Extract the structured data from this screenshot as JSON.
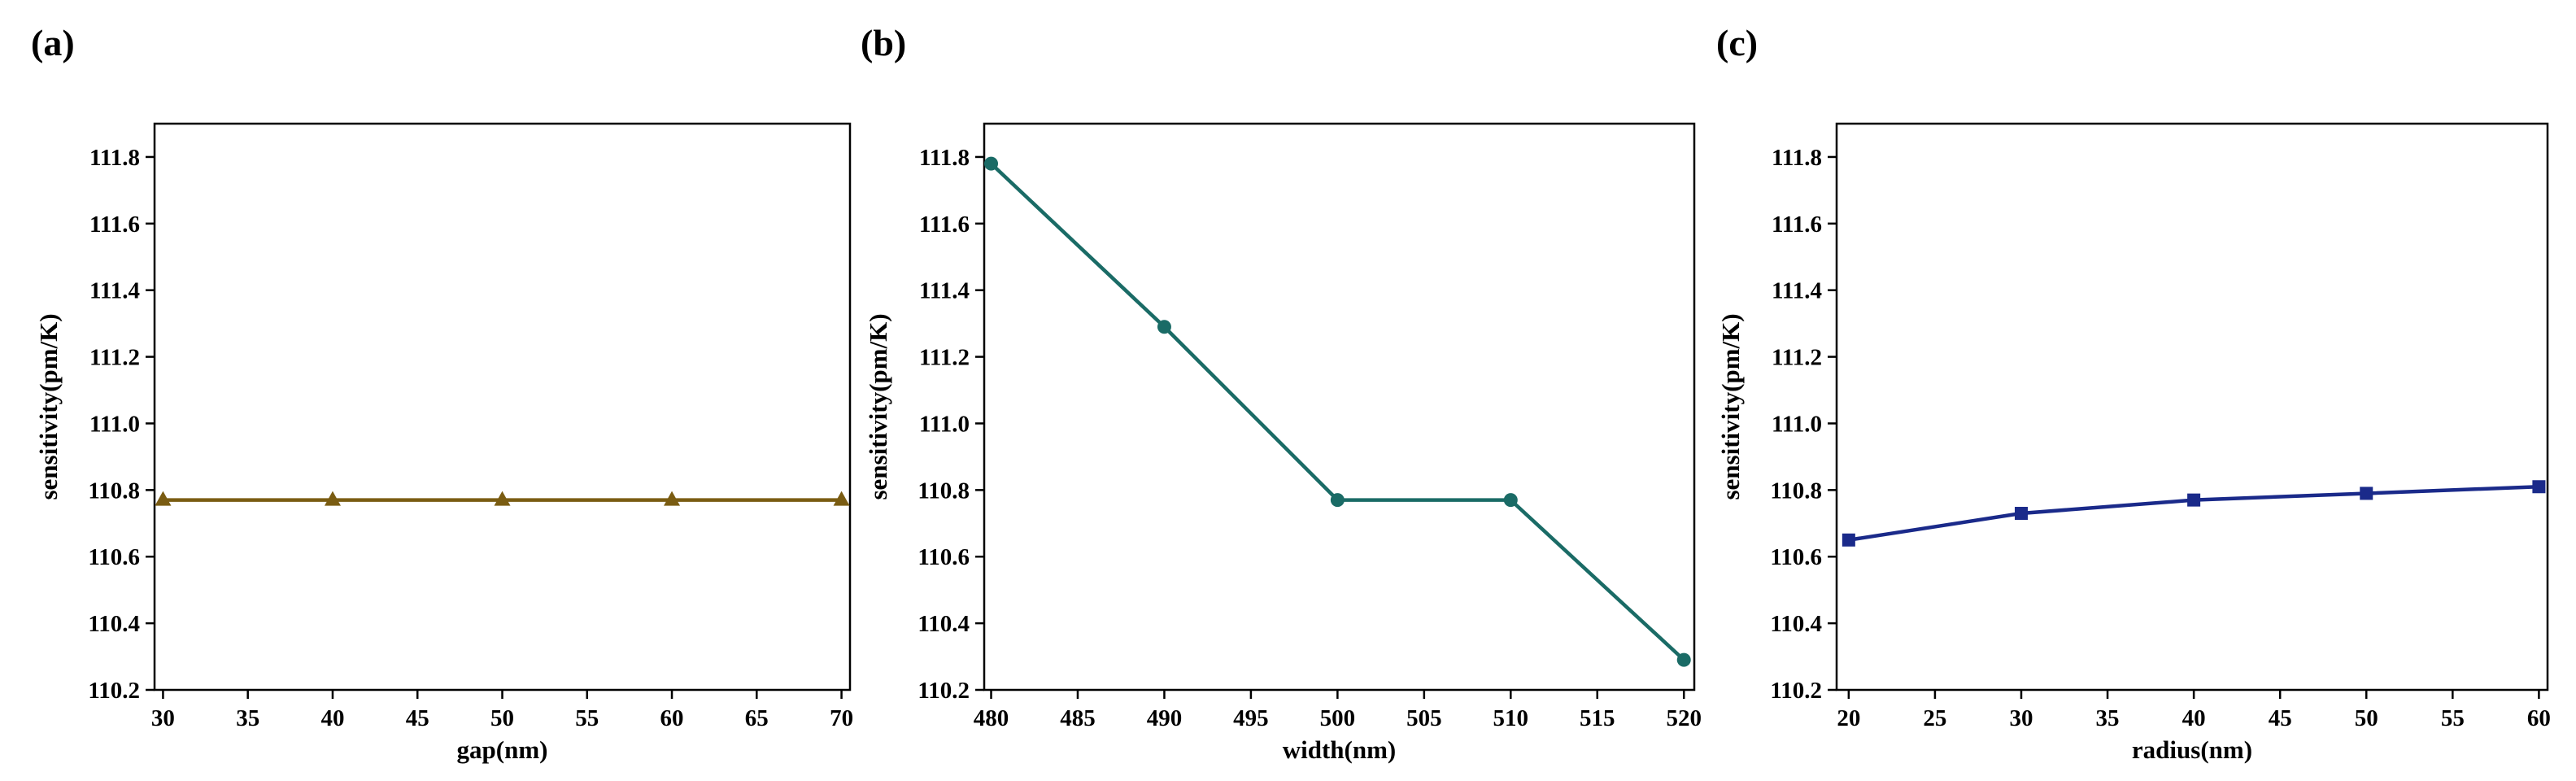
{
  "chart_data": [
    {
      "panel_label": "(a)",
      "type": "line",
      "xlabel": "gap(nm)",
      "ylabel": "sensitivity(pm/K)",
      "x": [
        30,
        40,
        50,
        60,
        70
      ],
      "series": [
        {
          "values": [
            110.77,
            110.77,
            110.77,
            110.77,
            110.77
          ]
        }
      ],
      "xlim": [
        29.5,
        70.5
      ],
      "ylim": [
        110.2,
        111.9
      ],
      "xticks": [
        30,
        35,
        40,
        45,
        50,
        55,
        60,
        65,
        70
      ],
      "yticks": [
        110.2,
        110.4,
        110.6,
        110.8,
        111.0,
        111.2,
        111.4,
        111.6,
        111.8
      ],
      "xtick_labels": [
        "30",
        "35",
        "40",
        "45",
        "50",
        "55",
        "60",
        "65",
        "70"
      ],
      "ytick_labels": [
        "110.2",
        "110.4",
        "110.6",
        "110.8",
        "111.0",
        "111.2",
        "111.4",
        "111.6",
        "111.8"
      ],
      "marker": "triangle",
      "color": "#7a5c12",
      "grid": false
    },
    {
      "panel_label": "(b)",
      "type": "line",
      "xlabel": "width(nm)",
      "ylabel": "sensitivity(pm/K)",
      "x": [
        480,
        490,
        500,
        510,
        520
      ],
      "series": [
        {
          "values": [
            111.78,
            111.29,
            110.77,
            110.77,
            110.29
          ]
        }
      ],
      "xlim": [
        479.6,
        520.6
      ],
      "ylim": [
        110.2,
        111.9
      ],
      "xticks": [
        480,
        485,
        490,
        495,
        500,
        505,
        510,
        515,
        520
      ],
      "yticks": [
        110.2,
        110.4,
        110.6,
        110.8,
        111.0,
        111.2,
        111.4,
        111.6,
        111.8
      ],
      "xtick_labels": [
        "480",
        "485",
        "490",
        "495",
        "500",
        "505",
        "510",
        "515",
        "520"
      ],
      "ytick_labels": [
        "110.2",
        "110.4",
        "110.6",
        "110.8",
        "111.0",
        "111.2",
        "111.4",
        "111.6",
        "111.8"
      ],
      "marker": "circle",
      "color": "#1a6b66",
      "grid": false
    },
    {
      "panel_label": "(c)",
      "type": "line",
      "xlabel": "radius(nm)",
      "ylabel": "sensitivity(pm/K)",
      "x": [
        20,
        30,
        40,
        50,
        60
      ],
      "series": [
        {
          "values": [
            110.65,
            110.73,
            110.77,
            110.79,
            110.81
          ]
        }
      ],
      "xlim": [
        19.3,
        60.5
      ],
      "ylim": [
        110.2,
        111.9
      ],
      "xticks": [
        20,
        25,
        30,
        35,
        40,
        45,
        50,
        55,
        60
      ],
      "yticks": [
        110.2,
        110.4,
        110.6,
        110.8,
        111.0,
        111.2,
        111.4,
        111.6,
        111.8
      ],
      "xtick_labels": [
        "20",
        "25",
        "30",
        "35",
        "40",
        "45",
        "50",
        "55",
        "60"
      ],
      "ytick_labels": [
        "110.2",
        "110.4",
        "110.6",
        "110.8",
        "111.0",
        "111.2",
        "111.4",
        "111.6",
        "111.8"
      ],
      "marker": "square",
      "color": "#1a2a8a",
      "grid": false
    }
  ]
}
